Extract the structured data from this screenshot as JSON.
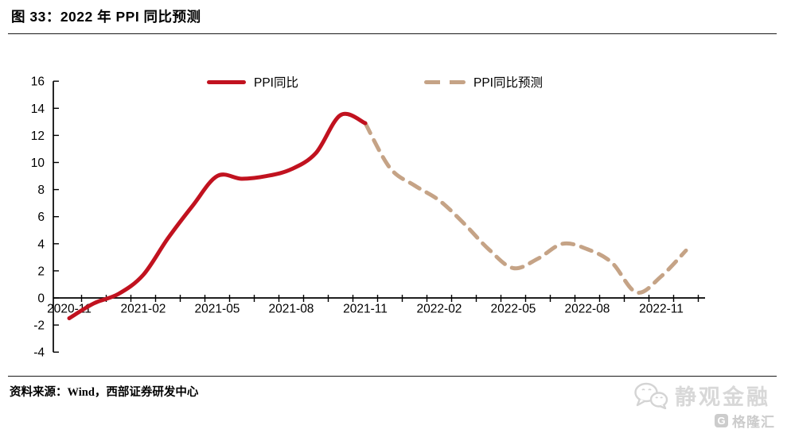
{
  "header": {
    "title": "图 33：2022 年 PPI 同比预测"
  },
  "footer": {
    "source": "资料来源：Wind，西部证券研发中心"
  },
  "watermark": {
    "wechat_icon": "wechat-bubbles",
    "wechat_name": "静观金融",
    "logo_letter": "G",
    "logo_text": "格隆汇"
  },
  "chart_data": {
    "type": "line",
    "title": "2022年PPI同比预测",
    "xlabel": "",
    "ylabel": "",
    "ylim": [
      -4,
      16
    ],
    "yticks": [
      16,
      14,
      12,
      10,
      8,
      6,
      4,
      2,
      0,
      -2,
      -4
    ],
    "grid": false,
    "legend_position": "top-center",
    "x_months": [
      "2020-11",
      "2020-12",
      "2021-01",
      "2021-02",
      "2021-03",
      "2021-04",
      "2021-05",
      "2021-06",
      "2021-07",
      "2021-08",
      "2021-09",
      "2021-10",
      "2021-11",
      "2021-12",
      "2022-01",
      "2022-02",
      "2022-03",
      "2022-04",
      "2022-05",
      "2022-06",
      "2022-07",
      "2022-08",
      "2022-09",
      "2022-10",
      "2022-11",
      "2022-12"
    ],
    "xtick_labels": [
      "2020-11",
      "2021-02",
      "2021-05",
      "2021-08",
      "2021-11",
      "2022-02",
      "2022-05",
      "2022-08",
      "2022-11"
    ],
    "series": [
      {
        "name": "PPI同比",
        "style": "solid",
        "color": "#c1121f",
        "start_index": 0,
        "values": [
          -1.5,
          -0.4,
          0.3,
          1.7,
          4.4,
          6.8,
          9.0,
          8.8,
          9.0,
          9.5,
          10.7,
          13.5,
          12.9
        ]
      },
      {
        "name": "PPI同比预测",
        "style": "dashed",
        "color": "#c5a386",
        "start_index": 12,
        "values": [
          12.9,
          9.6,
          8.3,
          7.2,
          5.5,
          3.6,
          2.2,
          2.9,
          4.0,
          3.6,
          2.6,
          0.4,
          1.6,
          3.5
        ]
      }
    ]
  }
}
